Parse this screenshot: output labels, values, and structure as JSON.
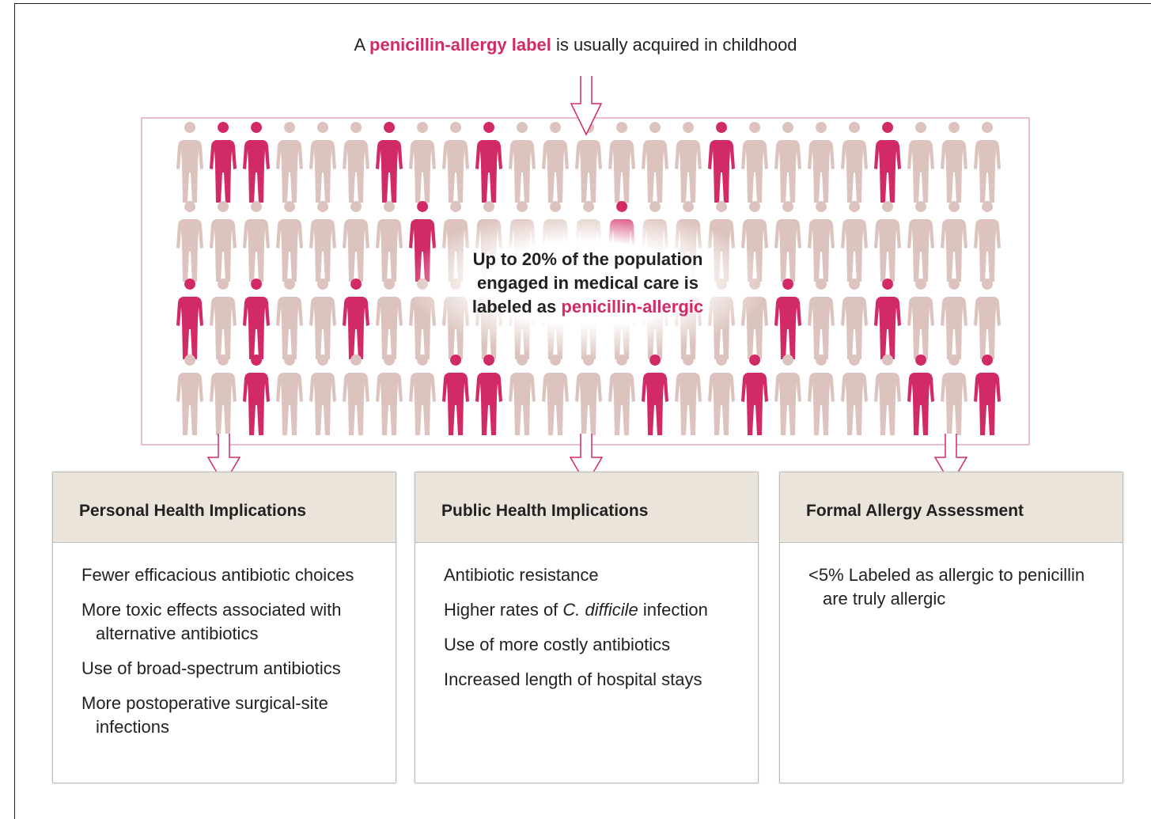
{
  "header": {
    "intro": "A",
    "highlight": "penicillin-allergy label",
    "rest": "is usually acquired in childhood"
  },
  "center": {
    "line1": "Up to 20% of the population",
    "line2": "engaged in medical care is",
    "line3": "labeled as",
    "highlight": "penicillin-allergic"
  },
  "panels": [
    {
      "title": "Personal Health Implications",
      "items": [
        "Fewer efficacious antibiotic choices",
        "More toxic effects associated with alternative antibiotics",
        "Use of broad-spectrum antibiotics",
        "More postoperative surgical-site infections"
      ]
    },
    {
      "title": "Public Health Implications",
      "items": [
        "Antibiotic resistance",
        {
          "before": "Higher rates of",
          "italic": "C. difficile",
          "after": "infection"
        },
        "Use of more costly antibiotics",
        "Increased length of hospital stays"
      ]
    },
    {
      "title": "Formal Allergy Assessment",
      "items": [
        "<5% Labeled as allergic to penicillin are truly allergic"
      ]
    }
  ]
}
